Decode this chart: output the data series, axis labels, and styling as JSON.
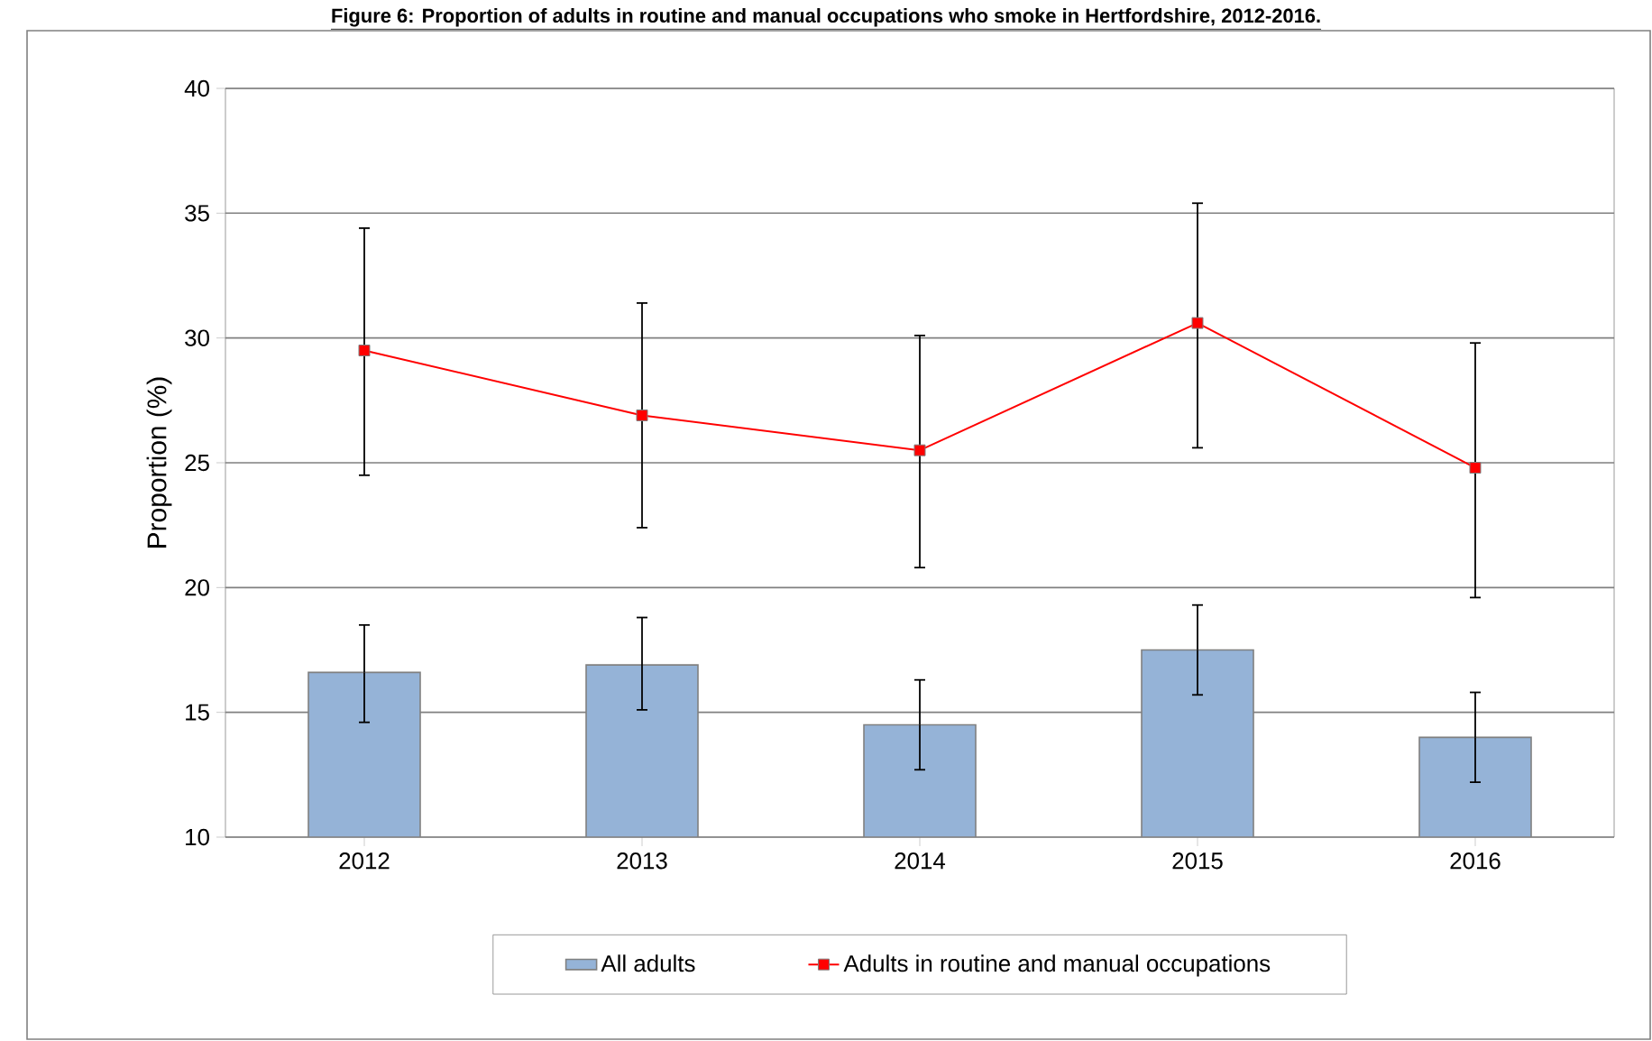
{
  "chart_data": {
    "type": "bar",
    "title": "Figure 6: Proportion of adults in routine and manual occupations who smoke in Hertfordshire, 2012-2016.",
    "ylabel": "Proportion  (%)",
    "categories": [
      "2012",
      "2013",
      "2014",
      "2015",
      "2016"
    ],
    "ylim": [
      10,
      40
    ],
    "yticks": [
      10,
      15,
      20,
      25,
      30,
      35,
      40
    ],
    "grid": "y",
    "legend": "bottom",
    "marker": "square",
    "series": [
      {
        "name": "All adults",
        "color": "#95b3d7",
        "values": [
          16.6,
          16.9,
          14.5,
          17.5,
          14.0
        ],
        "errors": [
          [
            14.6,
            18.5
          ],
          [
            15.1,
            18.8
          ],
          [
            12.7,
            16.3
          ],
          [
            15.7,
            19.3
          ],
          [
            12.2,
            15.8
          ]
        ]
      },
      {
        "name": "Adults in routine and manual occupations",
        "type": "line",
        "color": "#ff0000",
        "values": [
          29.5,
          26.9,
          25.5,
          30.6,
          24.8
        ],
        "errors": [
          [
            24.5,
            34.4
          ],
          [
            22.4,
            31.4
          ],
          [
            20.8,
            30.1
          ],
          [
            25.6,
            35.4
          ],
          [
            19.6,
            29.8
          ]
        ]
      }
    ]
  }
}
